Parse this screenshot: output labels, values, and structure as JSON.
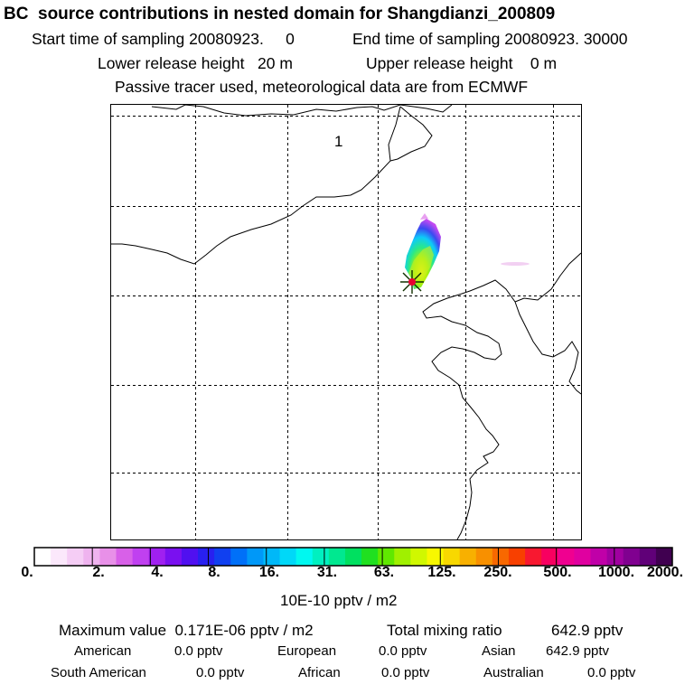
{
  "title": "BC  source contributions in nested domain for Shangdianzi_200809",
  "header": {
    "start_label": "Start time of sampling 20080923.     0",
    "end_label": "End time of sampling 20080923. 30000",
    "lower_label": "Lower release height   20 m",
    "upper_label": "Upper release height    0 m",
    "tracer_note": "Passive tracer used, meteorological data are from ECMWF"
  },
  "map": {
    "region_label": "1",
    "receptor_marker": "star-icon"
  },
  "colorbar": {
    "ticks": [
      "0.",
      "2.",
      "4.",
      "8.",
      "16.",
      "31.",
      "63.",
      "125.",
      "250.",
      "500.",
      "1000.",
      "2000."
    ],
    "unit_label": "10E-10 pptv / m2",
    "colors": [
      "#ffffff",
      "#fbe8fb",
      "#f5cdf5",
      "#efb3ef",
      "#e890e8",
      "#d860e8",
      "#c040f0",
      "#a020f0",
      "#7a10f0",
      "#5010f0",
      "#2820f0",
      "#1040f0",
      "#0070f8",
      "#0098f8",
      "#00b8f8",
      "#00d8f8",
      "#00f8f0",
      "#00f0c0",
      "#00e890",
      "#00e060",
      "#20e020",
      "#60e800",
      "#a0f000",
      "#d0f800",
      "#f8f800",
      "#f8d800",
      "#f8b000",
      "#f89000",
      "#f86800",
      "#f84000",
      "#f81830",
      "#f80060",
      "#f00090",
      "#e000a0",
      "#c000a8",
      "#a000a0",
      "#800090",
      "#600078",
      "#400050"
    ]
  },
  "stats": {
    "max_label": "Maximum value  0.171E-06 pptv / m2",
    "total_label": "Total mixing ratio",
    "total_value": "642.9 pptv",
    "american_label": "American",
    "american_value": "0.0 pptv",
    "european_label": "European",
    "european_value": "0.0 pptv",
    "asian_label": "Asian",
    "asian_value": "642.9 pptv",
    "south_american_label": "South American",
    "south_american_value": "0.0 pptv",
    "african_label": "African",
    "african_value": "0.0 pptv",
    "australian_label": "Australian",
    "australian_value": "0.0 pptv"
  }
}
